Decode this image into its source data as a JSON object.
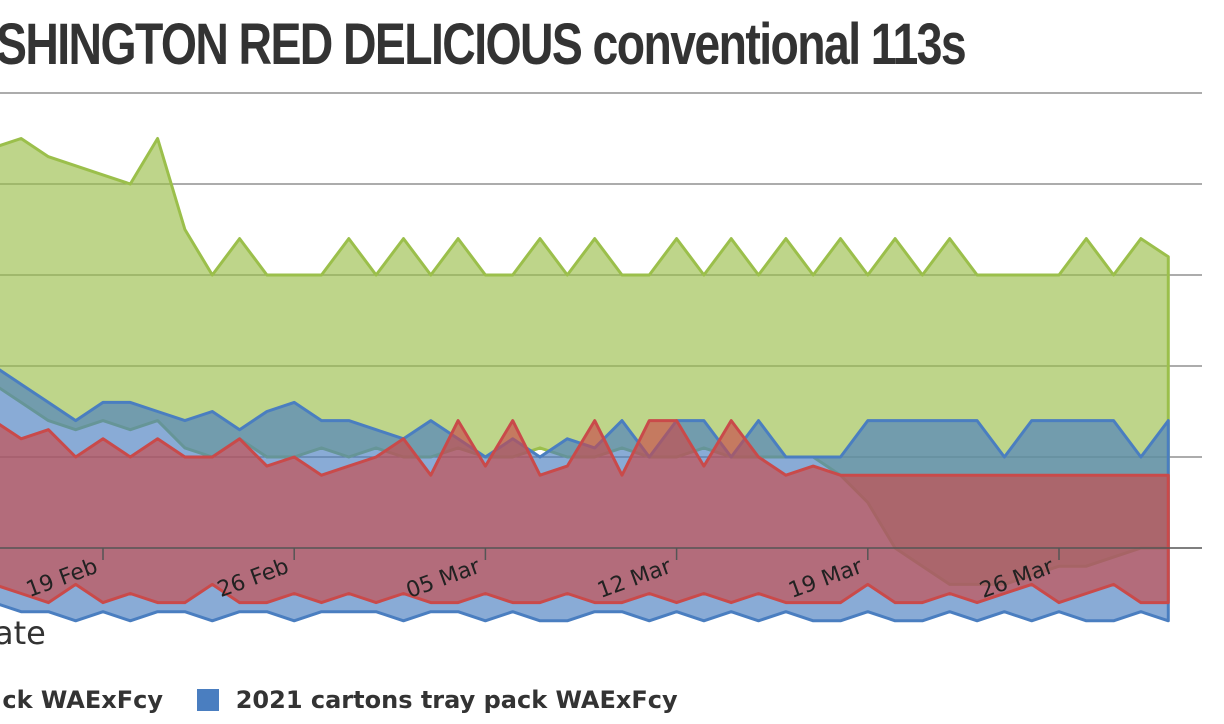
{
  "chart_data": {
    "type": "area",
    "title": "SHINGTON RED DELICIOUS conventional 113s",
    "xlabel": "ate",
    "x_ticks": [
      "19 Feb",
      "26 Feb",
      "05 Mar",
      "12 Mar",
      "19 Mar",
      "26 Mar"
    ],
    "x_tick_dates": [
      "2018-02-19",
      "2018-02-26",
      "2018-03-05",
      "2018-03-12",
      "2018-03-19",
      "2018-03-26"
    ],
    "x_range": [
      "2018-02-15",
      "2018-03-30"
    ],
    "grid": true,
    "legend_position": "bottom",
    "legend": [
      {
        "label": "ck WAExFcy",
        "color": "#c94a4a"
      },
      {
        "label": "2021 cartons tray pack WAExFcy",
        "color": "#4a7ec0"
      }
    ],
    "series": [
      {
        "color": "#9bbf4b",
        "fill": "rgba(155,191,75,0.65)",
        "dates": [
          "2018-02-15",
          "2018-02-16",
          "2018-02-17",
          "2018-02-18",
          "2018-02-19",
          "2018-02-20",
          "2018-02-21",
          "2018-02-22",
          "2018-02-23",
          "2018-02-24",
          "2018-02-25",
          "2018-02-26",
          "2018-02-27",
          "2018-02-28",
          "2018-03-01",
          "2018-03-02",
          "2018-03-03",
          "2018-03-04",
          "2018-03-05",
          "2018-03-06",
          "2018-03-07",
          "2018-03-08",
          "2018-03-09",
          "2018-03-10",
          "2018-03-11",
          "2018-03-12",
          "2018-03-13",
          "2018-03-14",
          "2018-03-15",
          "2018-03-16",
          "2018-03-17",
          "2018-03-18",
          "2018-03-19",
          "2018-03-20",
          "2018-03-21",
          "2018-03-22",
          "2018-03-23",
          "2018-03-24",
          "2018-03-25",
          "2018-03-26",
          "2018-03-27",
          "2018-03-28",
          "2018-03-29",
          "2018-03-30"
        ],
        "high": [
          26.4,
          26.5,
          26.3,
          26.2,
          26.1,
          26.0,
          26.5,
          25.5,
          25.0,
          25.4,
          25.0,
          25.0,
          25.0,
          25.4,
          25.0,
          25.4,
          25.0,
          25.4,
          25.0,
          25.0,
          25.4,
          25.0,
          25.4,
          25.0,
          25.0,
          25.4,
          25.0,
          25.4,
          25.0,
          25.4,
          25.0,
          25.4,
          25.0,
          25.4,
          25.0,
          25.4,
          25.0,
          25.0,
          25.0,
          25.0,
          25.4,
          25.0,
          25.4,
          25.2
        ],
        "low": [
          23.8,
          23.6,
          23.4,
          23.3,
          23.4,
          23.3,
          23.4,
          23.1,
          23.0,
          23.2,
          23.0,
          23.0,
          23.1,
          23.0,
          23.1,
          23.0,
          23.0,
          23.1,
          23.0,
          23.0,
          23.1,
          23.0,
          23.0,
          23.1,
          23.0,
          23.0,
          23.1,
          23.0,
          23.0,
          23.0,
          23.0,
          22.8,
          22.5,
          22.0,
          21.8,
          21.6,
          21.6,
          21.6,
          21.7,
          21.8,
          21.8,
          21.9,
          22.0,
          22.0
        ]
      },
      {
        "color": "#4a7ec0",
        "fill": "rgba(74,126,192,0.65)",
        "dates": [
          "2018-02-15",
          "2018-02-16",
          "2018-02-17",
          "2018-02-18",
          "2018-02-19",
          "2018-02-20",
          "2018-02-21",
          "2018-02-22",
          "2018-02-23",
          "2018-02-24",
          "2018-02-25",
          "2018-02-26",
          "2018-02-27",
          "2018-02-28",
          "2018-03-01",
          "2018-03-02",
          "2018-03-03",
          "2018-03-04",
          "2018-03-05",
          "2018-03-06",
          "2018-03-07",
          "2018-03-08",
          "2018-03-09",
          "2018-03-10",
          "2018-03-11",
          "2018-03-12",
          "2018-03-13",
          "2018-03-14",
          "2018-03-15",
          "2018-03-16",
          "2018-03-17",
          "2018-03-18",
          "2018-03-19",
          "2018-03-20",
          "2018-03-21",
          "2018-03-22",
          "2018-03-23",
          "2018-03-24",
          "2018-03-25",
          "2018-03-26",
          "2018-03-27",
          "2018-03-28",
          "2018-03-29",
          "2018-03-30"
        ],
        "high": [
          24.0,
          23.8,
          23.6,
          23.4,
          23.6,
          23.6,
          23.5,
          23.4,
          23.5,
          23.3,
          23.5,
          23.6,
          23.4,
          23.4,
          23.3,
          23.2,
          23.4,
          23.2,
          23.0,
          23.2,
          23.0,
          23.2,
          23.1,
          23.4,
          23.0,
          23.4,
          23.4,
          23.0,
          23.4,
          23.0,
          23.0,
          23.0,
          23.4,
          23.4,
          23.4,
          23.4,
          23.4,
          23.0,
          23.4,
          23.4,
          23.4,
          23.4,
          23.0,
          23.4
        ],
        "low": [
          21.4,
          21.3,
          21.3,
          21.2,
          21.3,
          21.2,
          21.3,
          21.3,
          21.2,
          21.3,
          21.3,
          21.2,
          21.3,
          21.3,
          21.3,
          21.2,
          21.3,
          21.3,
          21.2,
          21.3,
          21.2,
          21.2,
          21.3,
          21.3,
          21.2,
          21.3,
          21.2,
          21.3,
          21.2,
          21.3,
          21.2,
          21.2,
          21.3,
          21.2,
          21.2,
          21.3,
          21.2,
          21.3,
          21.2,
          21.3,
          21.2,
          21.2,
          21.3,
          21.2
        ]
      },
      {
        "color": "#c94a4a",
        "fill": "rgba(201,74,74,0.65)",
        "dates": [
          "2018-02-15",
          "2018-02-16",
          "2018-02-17",
          "2018-02-18",
          "2018-02-19",
          "2018-02-20",
          "2018-02-21",
          "2018-02-22",
          "2018-02-23",
          "2018-02-24",
          "2018-02-25",
          "2018-02-26",
          "2018-02-27",
          "2018-02-28",
          "2018-03-01",
          "2018-03-02",
          "2018-03-03",
          "2018-03-04",
          "2018-03-05",
          "2018-03-06",
          "2018-03-07",
          "2018-03-08",
          "2018-03-09",
          "2018-03-10",
          "2018-03-11",
          "2018-03-12",
          "2018-03-13",
          "2018-03-14",
          "2018-03-15",
          "2018-03-16",
          "2018-03-17",
          "2018-03-18",
          "2018-03-19",
          "2018-03-20",
          "2018-03-21",
          "2018-03-22",
          "2018-03-23",
          "2018-03-24",
          "2018-03-25",
          "2018-03-26",
          "2018-03-27",
          "2018-03-28",
          "2018-03-29",
          "2018-03-30"
        ],
        "high": [
          23.4,
          23.2,
          23.3,
          23.0,
          23.2,
          23.0,
          23.2,
          23.0,
          23.0,
          23.2,
          22.9,
          23.0,
          22.8,
          22.9,
          23.0,
          23.2,
          22.8,
          23.4,
          22.9,
          23.4,
          22.8,
          22.9,
          23.4,
          22.8,
          23.4,
          23.4,
          22.9,
          23.4,
          23.0,
          22.8,
          22.9,
          22.8,
          22.8,
          22.8,
          22.8,
          22.8,
          22.8,
          22.8,
          22.8,
          22.8,
          22.8,
          22.8,
          22.8,
          22.8
        ],
        "low": [
          21.6,
          21.5,
          21.4,
          21.6,
          21.4,
          21.5,
          21.4,
          21.4,
          21.6,
          21.4,
          21.4,
          21.5,
          21.4,
          21.5,
          21.4,
          21.5,
          21.4,
          21.4,
          21.5,
          21.4,
          21.4,
          21.5,
          21.4,
          21.4,
          21.5,
          21.4,
          21.5,
          21.4,
          21.5,
          21.4,
          21.4,
          21.4,
          21.6,
          21.4,
          21.4,
          21.5,
          21.4,
          21.5,
          21.6,
          21.4,
          21.5,
          21.6,
          21.4,
          21.4
        ]
      }
    ]
  }
}
